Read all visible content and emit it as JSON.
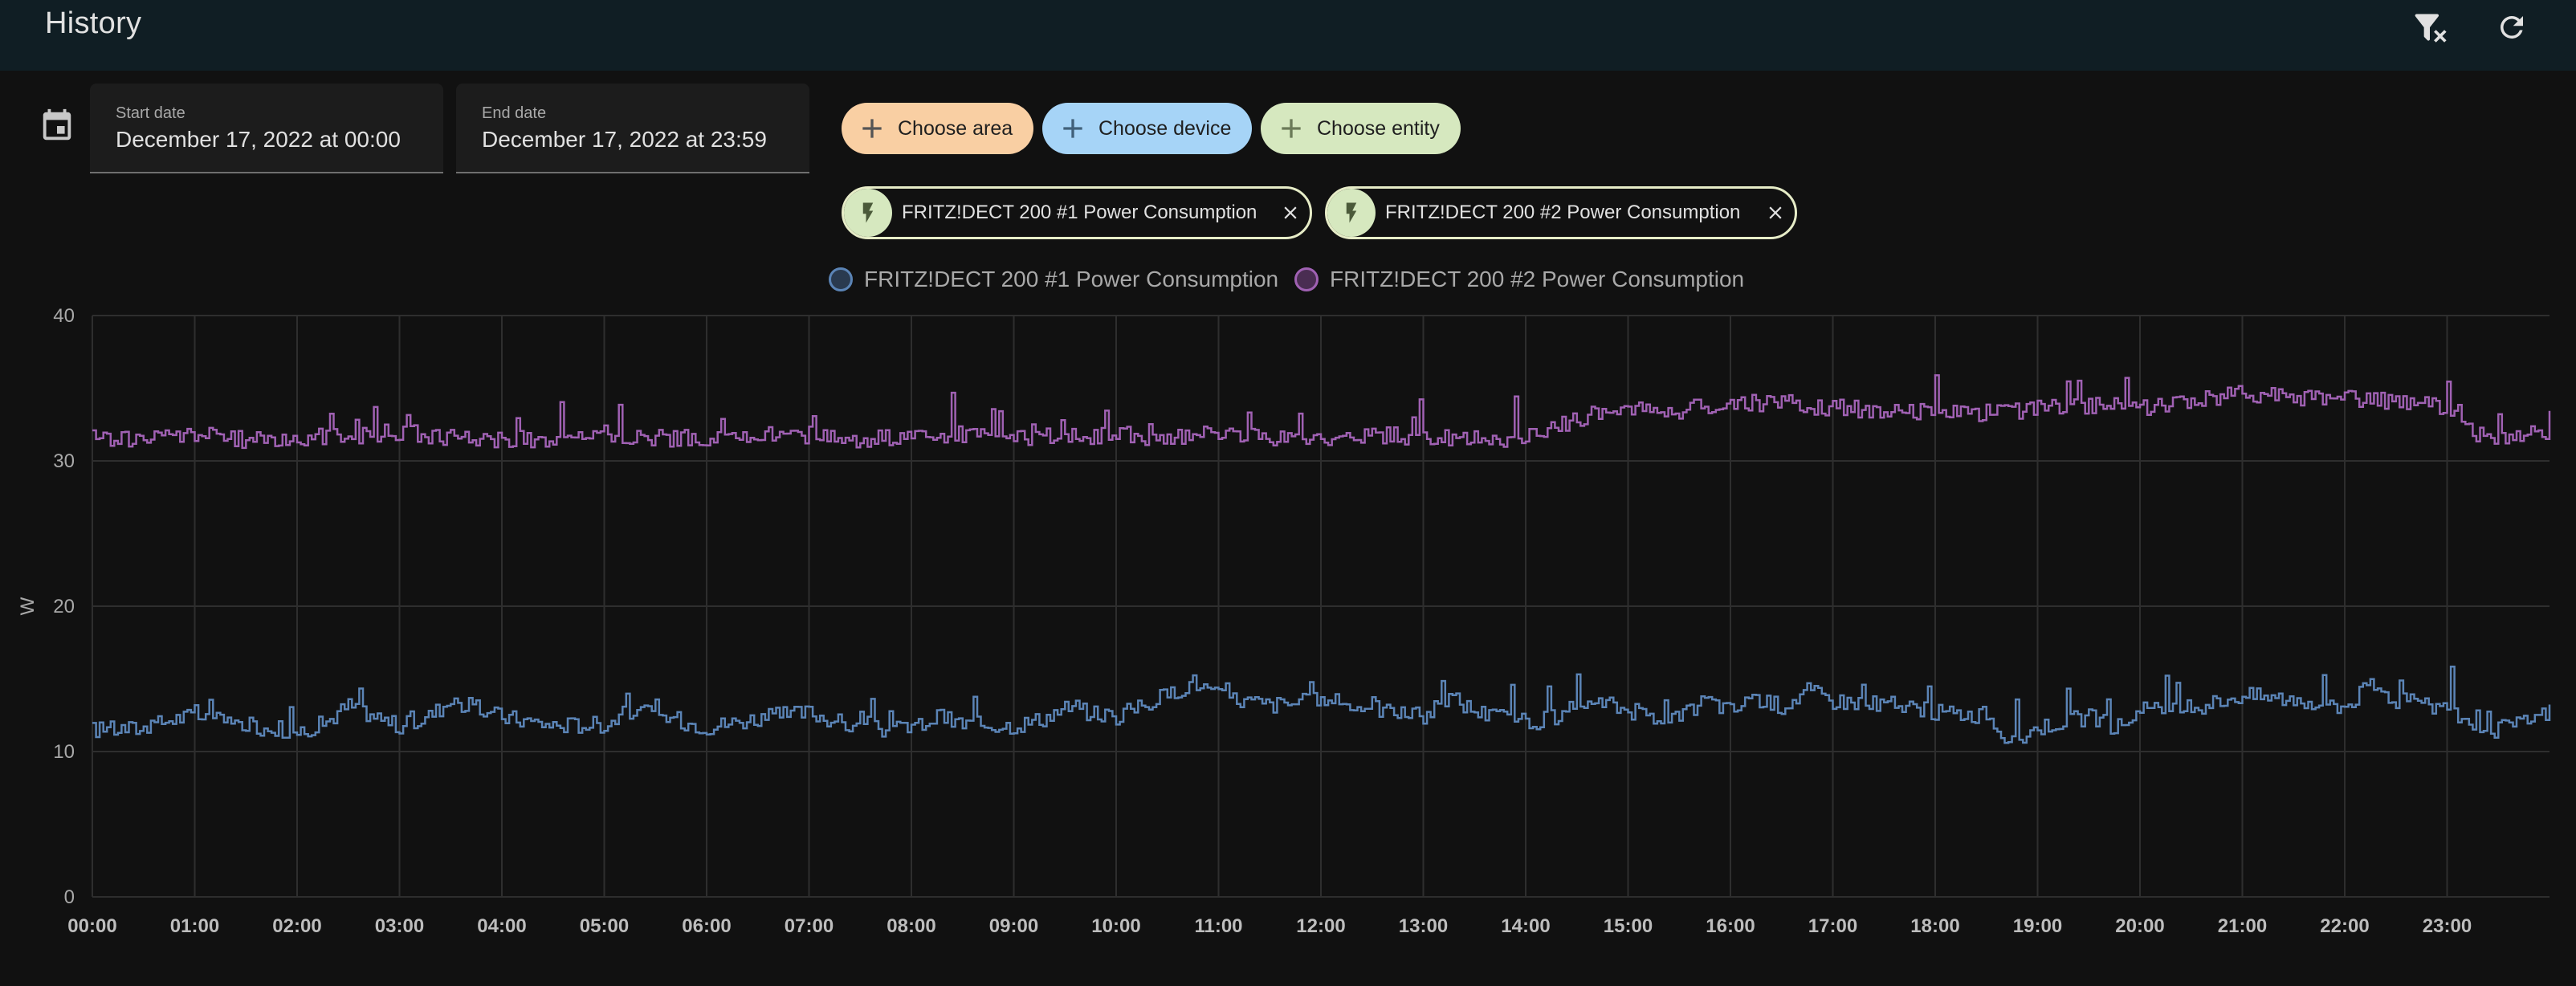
{
  "header": {
    "title": "History",
    "clear_icon": "filter-remove-icon",
    "refresh_icon": "refresh-icon"
  },
  "dates": {
    "icon": "calendar-icon",
    "start_label": "Start date",
    "start_value": "December 17, 2022 at 00:00",
    "end_label": "End date",
    "end_value": "December 17, 2022 at 23:59"
  },
  "targets": {
    "add": [
      {
        "label": "Choose area",
        "color": "#f9cfa3"
      },
      {
        "label": "Choose device",
        "color": "#a6d4f7"
      },
      {
        "label": "Choose entity",
        "color": "#d6e8bf"
      }
    ],
    "selected": [
      {
        "label": "FRITZ!DECT 200 #1 Power Consumption",
        "icon": "flash-icon"
      },
      {
        "label": "FRITZ!DECT 200 #2 Power Consumption",
        "icon": "flash-icon"
      }
    ]
  },
  "colors": {
    "series1": "#5b84b6",
    "series2": "#a061b3",
    "grid": "#2e2e2e",
    "background": "#111111"
  },
  "chart_data": {
    "type": "line",
    "step": true,
    "ylabel": "W",
    "ylim": [
      0,
      40
    ],
    "y_ticks": [
      0,
      10,
      20,
      30,
      40
    ],
    "xlim": [
      0,
      24
    ],
    "x_ticks": [
      "00:00",
      "01:00",
      "02:00",
      "03:00",
      "04:00",
      "05:00",
      "06:00",
      "07:00",
      "08:00",
      "09:00",
      "10:00",
      "11:00",
      "12:00",
      "13:00",
      "14:00",
      "15:00",
      "16:00",
      "17:00",
      "18:00",
      "19:00",
      "20:00",
      "21:00",
      "22:00",
      "23:00"
    ],
    "legend_position": "top-center",
    "grid": true,
    "series": [
      {
        "name": "FRITZ!DECT 200 #1 Power Consumption",
        "color": "#5b84b6",
        "x": [
          0,
          0.5,
          0.75,
          1,
          1.5,
          2,
          2.25,
          2.5,
          3,
          3.25,
          3.5,
          4,
          4.5,
          5,
          5.25,
          5.5,
          6,
          6.5,
          7,
          7.5,
          8,
          8.25,
          8.5,
          9,
          9.25,
          9.5,
          10,
          10.25,
          10.5,
          10.75,
          11,
          11.5,
          12,
          12.5,
          13,
          13.25,
          13.5,
          14,
          14.5,
          14.75,
          15,
          15.5,
          15.75,
          16,
          16.25,
          16.5,
          16.75,
          17,
          17.5,
          18,
          18.5,
          18.75,
          19,
          19.5,
          19.75,
          20,
          20.5,
          21,
          21.5,
          22,
          22.25,
          22.5,
          23,
          23.25,
          23.5,
          23.75,
          24
        ],
        "y": [
          11.5,
          11.6,
          12.2,
          12.5,
          11.8,
          11.4,
          11.9,
          13.2,
          11.7,
          12.3,
          13.5,
          12.4,
          11.8,
          11.9,
          12.8,
          12.5,
          11.7,
          12.3,
          12.7,
          11.5,
          11.6,
          12.4,
          11.9,
          11.8,
          12.2,
          13.0,
          12.4,
          13.2,
          13.9,
          14.8,
          13.8,
          13.2,
          13.5,
          13.0,
          12.4,
          13.8,
          12.8,
          12.0,
          12.5,
          13.4,
          12.8,
          12.2,
          13.6,
          12.8,
          13.7,
          13.1,
          14.2,
          13.5,
          13.3,
          12.7,
          12.5,
          10.5,
          11.7,
          12.4,
          11.6,
          12.8,
          13.0,
          13.9,
          13.6,
          13.1,
          14.6,
          13.5,
          13.0,
          11.8,
          11.5,
          12.0,
          12.8
        ]
      },
      {
        "name": "FRITZ!DECT 200 #2 Power Consumption",
        "color": "#a061b3",
        "x": [
          0,
          0.5,
          1,
          1.5,
          2,
          2.5,
          3,
          3.5,
          4,
          4.5,
          5,
          5.5,
          6,
          6.5,
          7,
          7.5,
          8,
          8.5,
          9,
          9.5,
          10,
          10.5,
          11,
          11.5,
          12,
          12.5,
          13,
          13.5,
          14,
          14.25,
          14.5,
          14.75,
          15,
          15.5,
          16,
          16.5,
          17,
          17.5,
          18,
          18.5,
          19,
          19.5,
          20,
          20.5,
          21,
          21.5,
          22,
          22.5,
          23,
          23.25,
          23.5,
          24
        ],
        "y": [
          31.6,
          31.5,
          31.9,
          31.4,
          31.6,
          31.7,
          32.0,
          31.6,
          31.5,
          31.4,
          31.9,
          31.6,
          31.5,
          31.7,
          31.8,
          31.5,
          31.6,
          31.8,
          31.6,
          31.7,
          31.8,
          31.6,
          31.9,
          31.6,
          31.5,
          31.8,
          31.6,
          31.5,
          31.6,
          32.3,
          32.9,
          33.4,
          33.6,
          33.5,
          33.9,
          34.0,
          33.6,
          33.5,
          33.4,
          33.3,
          33.6,
          33.8,
          33.7,
          34.1,
          34.6,
          34.4,
          34.3,
          34.1,
          33.7,
          31.8,
          31.6,
          31.9
        ]
      }
    ]
  }
}
